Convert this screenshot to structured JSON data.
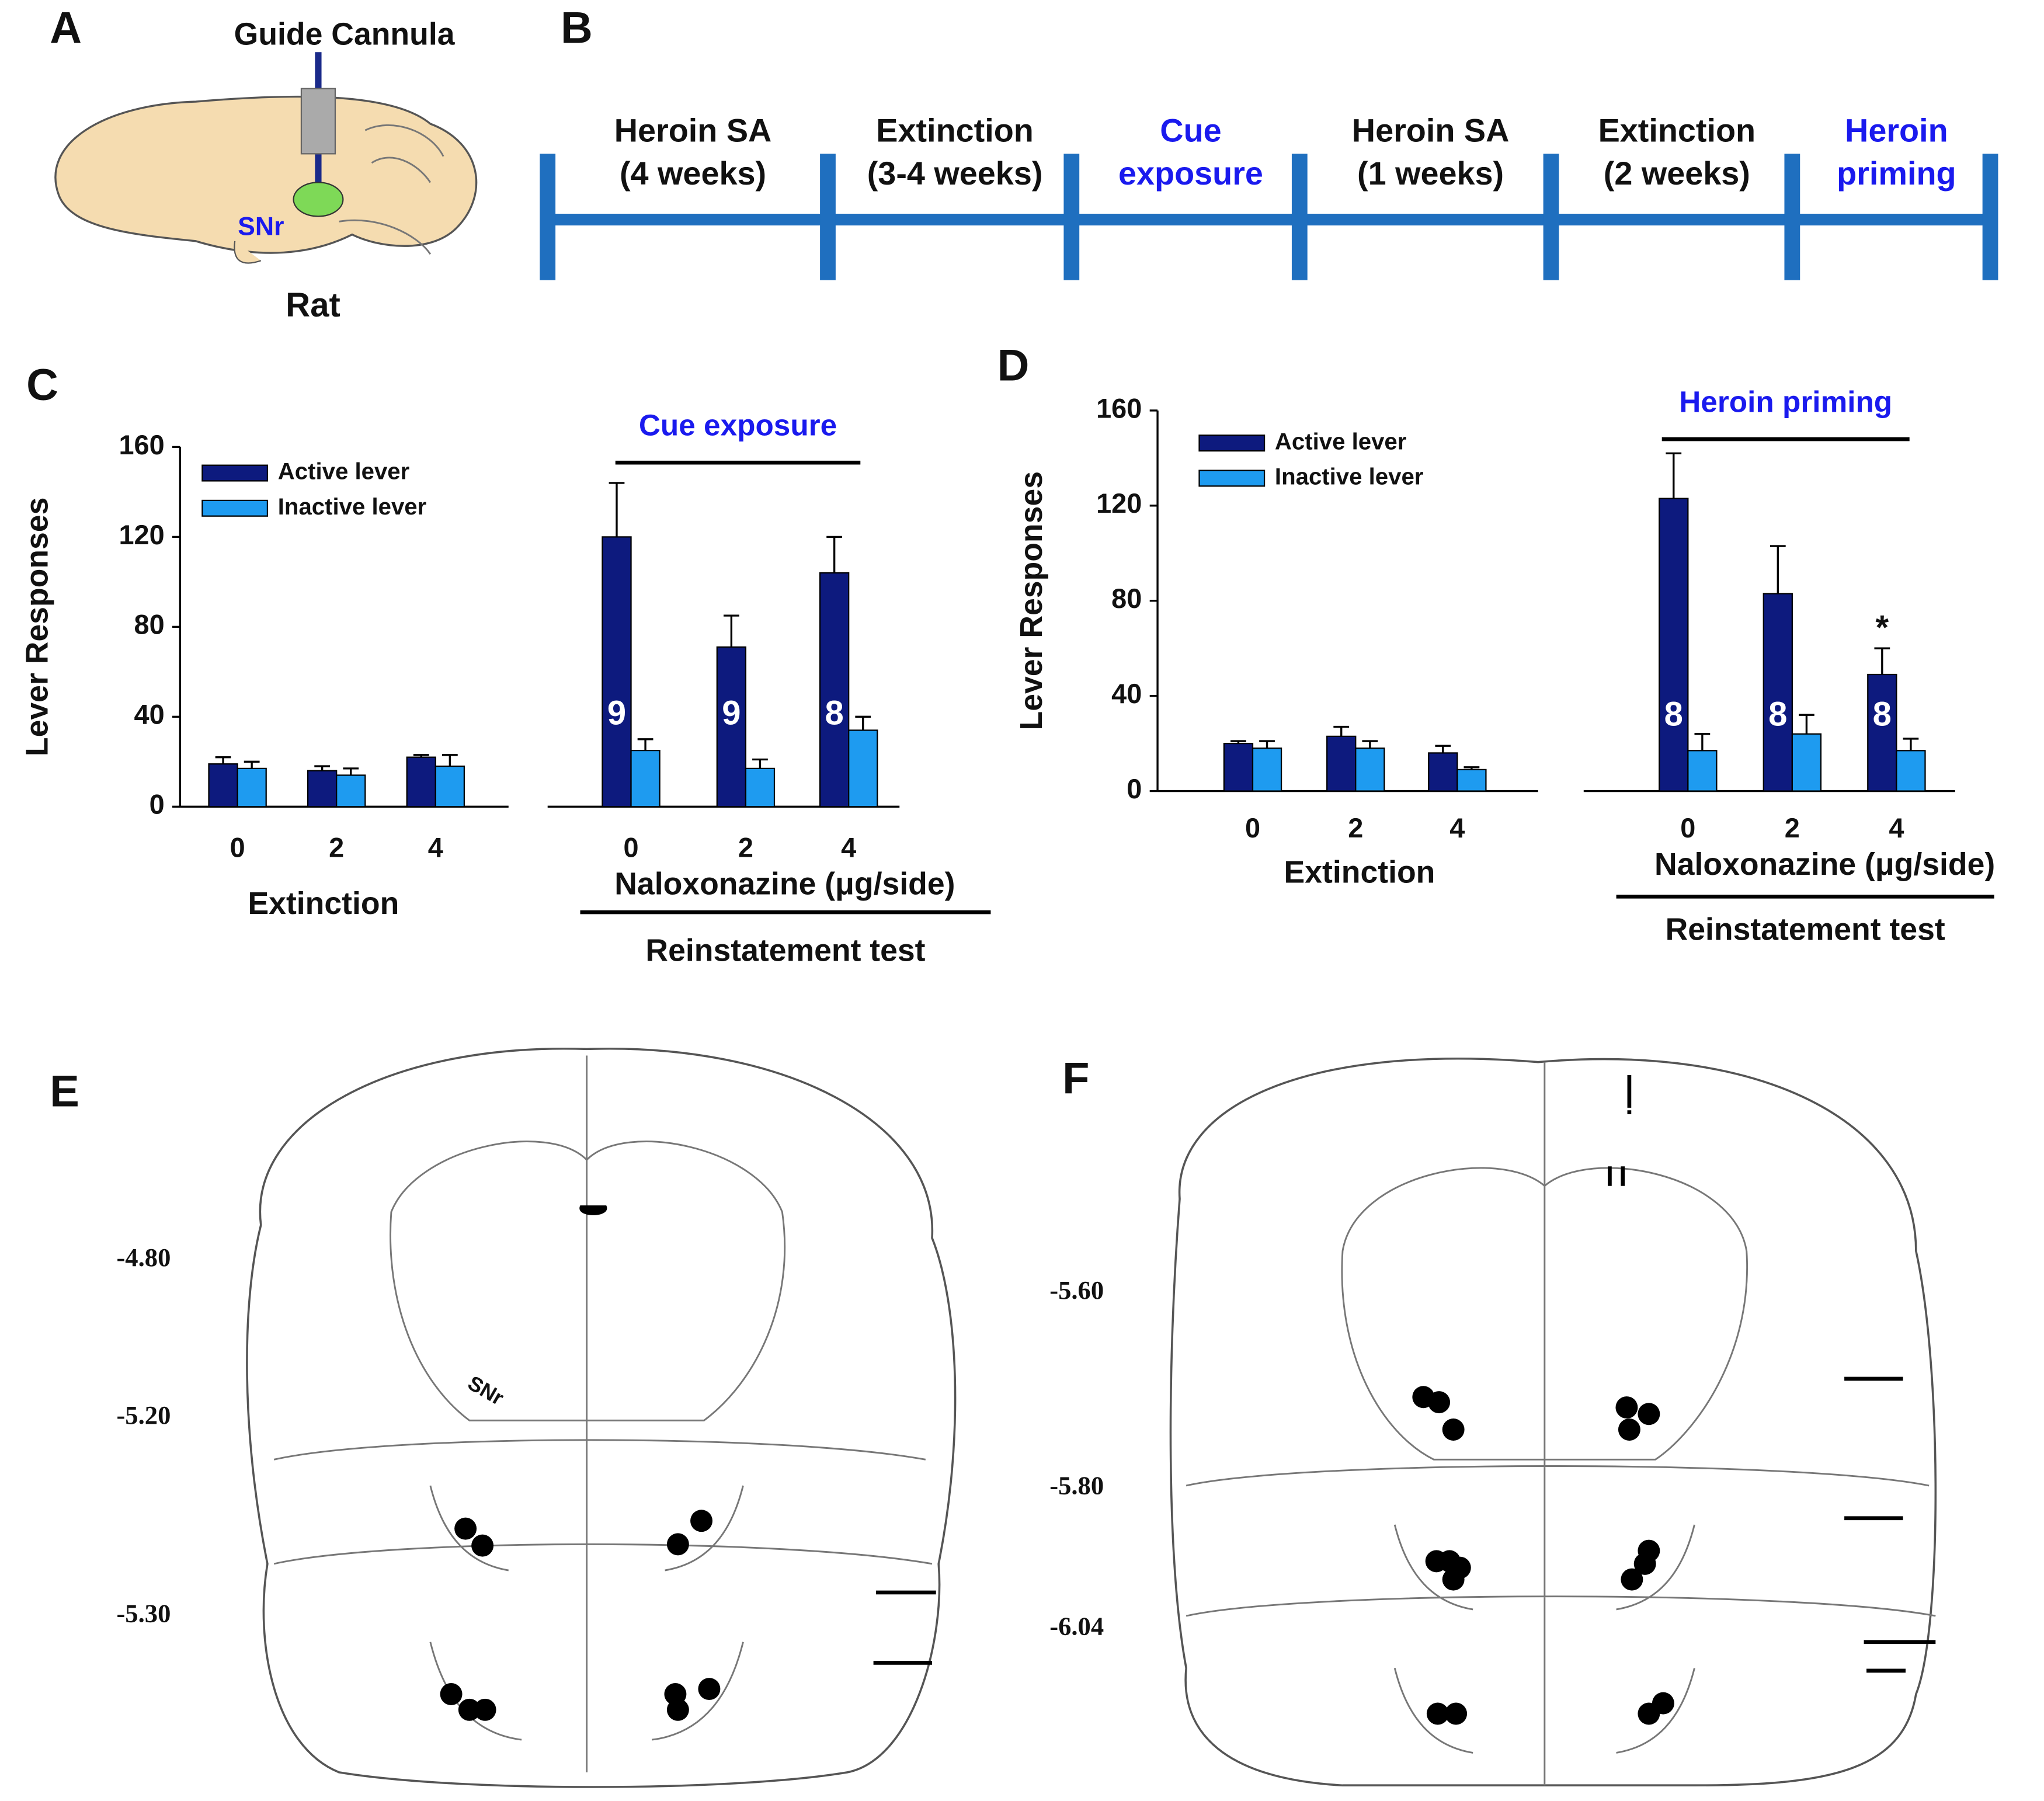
{
  "panel_labels": {
    "a": "A",
    "b": "B",
    "c": "C",
    "d": "D",
    "e": "E",
    "f": "F"
  },
  "panel_a": {
    "cannula_label": "Guide Cannula",
    "region_label": "SNr",
    "species_label": "Rat"
  },
  "timeline": [
    {
      "lines": [
        "Heroin SA",
        "(4 weeks)"
      ],
      "color": "#111111"
    },
    {
      "lines": [
        "Extinction",
        "(3-4 weeks)"
      ],
      "color": "#111111"
    },
    {
      "lines": [
        "Cue",
        "exposure"
      ],
      "color": "#1a1aee"
    },
    {
      "lines": [
        "Heroin SA",
        "(1 weeks)"
      ],
      "color": "#111111"
    },
    {
      "lines": [
        "Extinction",
        "(2 weeks)"
      ],
      "color": "#111111"
    },
    {
      "lines": [
        "Heroin",
        "priming"
      ],
      "color": "#1a1aee"
    }
  ],
  "chart_data": [
    {
      "type": "bar",
      "ylabel": "Lever Responses",
      "ylim": [
        0,
        160
      ],
      "yticks": [
        0,
        40,
        80,
        120,
        160
      ],
      "categories": [
        "0",
        "2",
        "4",
        "0",
        "2",
        "4"
      ],
      "groups": [
        "Extinction",
        "Naloxonazine  (μg/side)"
      ],
      "test_label": "Reinstatement test",
      "annotation": "Cue exposure",
      "annotation_color": "#1a1aee",
      "series": [
        {
          "name": "Active lever",
          "color": "#0d1a7e",
          "values": [
            19,
            16,
            22,
            120,
            71,
            104
          ],
          "errors": [
            3,
            2,
            1,
            24,
            14,
            16
          ],
          "n_labels": [
            null,
            null,
            null,
            "9",
            "9",
            "8"
          ]
        },
        {
          "name": "Inactive lever",
          "color": "#1e9bf0",
          "values": [
            17,
            14,
            18,
            25,
            17,
            34
          ],
          "errors": [
            3,
            3,
            5,
            5,
            4,
            6
          ]
        }
      ]
    },
    {
      "type": "bar",
      "ylabel": "Lever Responses",
      "ylim": [
        0,
        160
      ],
      "yticks": [
        0,
        40,
        80,
        120,
        160
      ],
      "categories": [
        "0",
        "2",
        "4",
        "0",
        "2",
        "4"
      ],
      "groups": [
        "Extinction",
        "Naloxonazine  (μg/side)"
      ],
      "test_label": "Reinstatement test",
      "annotation": "Heroin priming",
      "annotation_color": "#1a1aee",
      "series": [
        {
          "name": "Active lever",
          "color": "#0d1a7e",
          "values": [
            20,
            23,
            16,
            123,
            83,
            49
          ],
          "errors": [
            1,
            4,
            3,
            19,
            20,
            11
          ],
          "n_labels": [
            null,
            null,
            null,
            "8",
            "8",
            "8"
          ],
          "markers": [
            null,
            null,
            null,
            null,
            null,
            "*"
          ]
        },
        {
          "name": "Inactive lever",
          "color": "#1e9bf0",
          "values": [
            18,
            18,
            9,
            17,
            24,
            17
          ],
          "errors": [
            3,
            3,
            1,
            7,
            8,
            5
          ]
        }
      ]
    }
  ],
  "panel_e": {
    "section_labels": [
      "-4.80",
      "-5.20",
      "-5.30"
    ],
    "region_label": "SNr"
  },
  "panel_f": {
    "section_labels": [
      "-5.60",
      "-5.80",
      "-6.04"
    ]
  }
}
